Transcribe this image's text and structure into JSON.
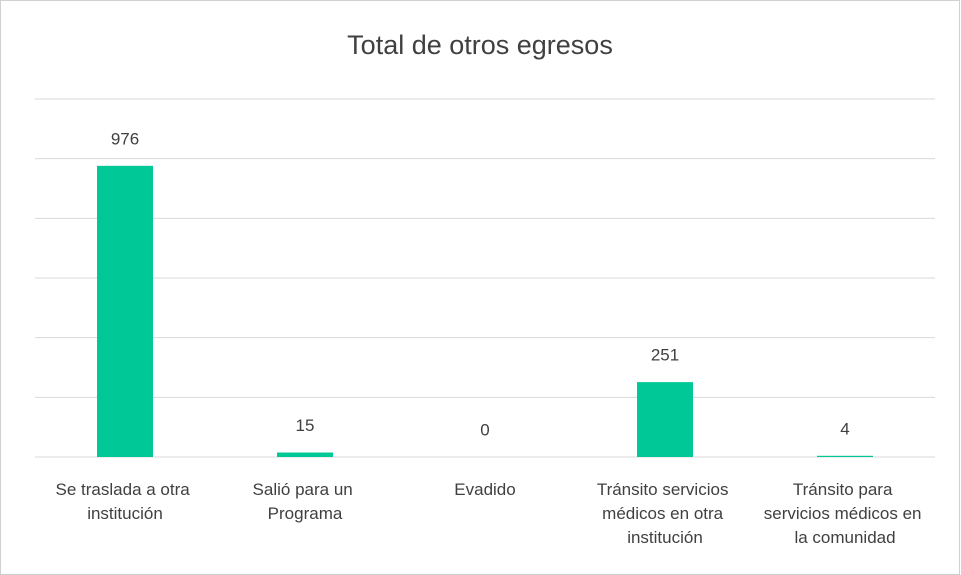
{
  "chart_data": {
    "type": "bar",
    "title": "Total de otros egresos",
    "categories": [
      "Se traslada a otra institución",
      "Salió para un Programa",
      "Evadido",
      "Tránsito servicios médicos en otra institución",
      "Tránsito para servicios médicos en la comunidad"
    ],
    "values": [
      976,
      15,
      0,
      251,
      4
    ],
    "color": "#00c896",
    "ylim": [
      0,
      1200
    ],
    "yticks": [
      0,
      200,
      400,
      600,
      800,
      1000,
      1200
    ],
    "grid": true
  }
}
